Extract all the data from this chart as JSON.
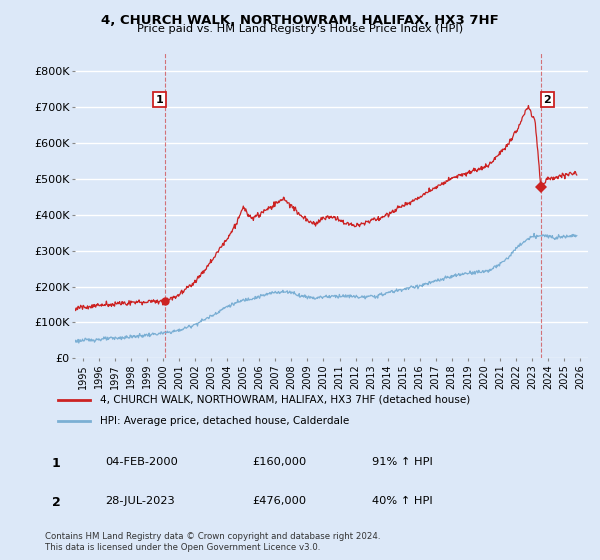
{
  "title": "4, CHURCH WALK, NORTHOWRAM, HALIFAX, HX3 7HF",
  "subtitle": "Price paid vs. HM Land Registry's House Price Index (HPI)",
  "ylim": [
    0,
    850000
  ],
  "yticks": [
    0,
    100000,
    200000,
    300000,
    400000,
    500000,
    600000,
    700000,
    800000
  ],
  "ytick_labels": [
    "£0",
    "£100K",
    "£200K",
    "£300K",
    "£400K",
    "£500K",
    "£600K",
    "£700K",
    "£800K"
  ],
  "xlim_start": 1994.5,
  "xlim_end": 2026.5,
  "xticks": [
    1995,
    1996,
    1997,
    1998,
    1999,
    2000,
    2001,
    2002,
    2003,
    2004,
    2005,
    2006,
    2007,
    2008,
    2009,
    2010,
    2011,
    2012,
    2013,
    2014,
    2015,
    2016,
    2017,
    2018,
    2019,
    2020,
    2021,
    2022,
    2023,
    2024,
    2025,
    2026
  ],
  "fig_bg": "#dce8f8",
  "plot_bg": "#dce8f8",
  "grid_color": "#ffffff",
  "sale1_date": 2000.09,
  "sale1_price": 160000,
  "sale2_date": 2023.57,
  "sale2_price": 476000,
  "vline1_date": 2000.09,
  "vline2_date": 2023.57,
  "hpi_color": "#7bafd4",
  "price_color": "#cc2222",
  "legend_label1": "4, CHURCH WALK, NORTHOWRAM, HALIFAX, HX3 7HF (detached house)",
  "legend_label2": "HPI: Average price, detached house, Calderdale",
  "note1_label": "1",
  "note1_date": "04-FEB-2000",
  "note1_price": "£160,000",
  "note1_hpi": "91% ↑ HPI",
  "note2_label": "2",
  "note2_date": "28-JUL-2023",
  "note2_price": "£476,000",
  "note2_hpi": "40% ↑ HPI",
  "footer": "Contains HM Land Registry data © Crown copyright and database right 2024.\nThis data is licensed under the Open Government Licence v3.0."
}
